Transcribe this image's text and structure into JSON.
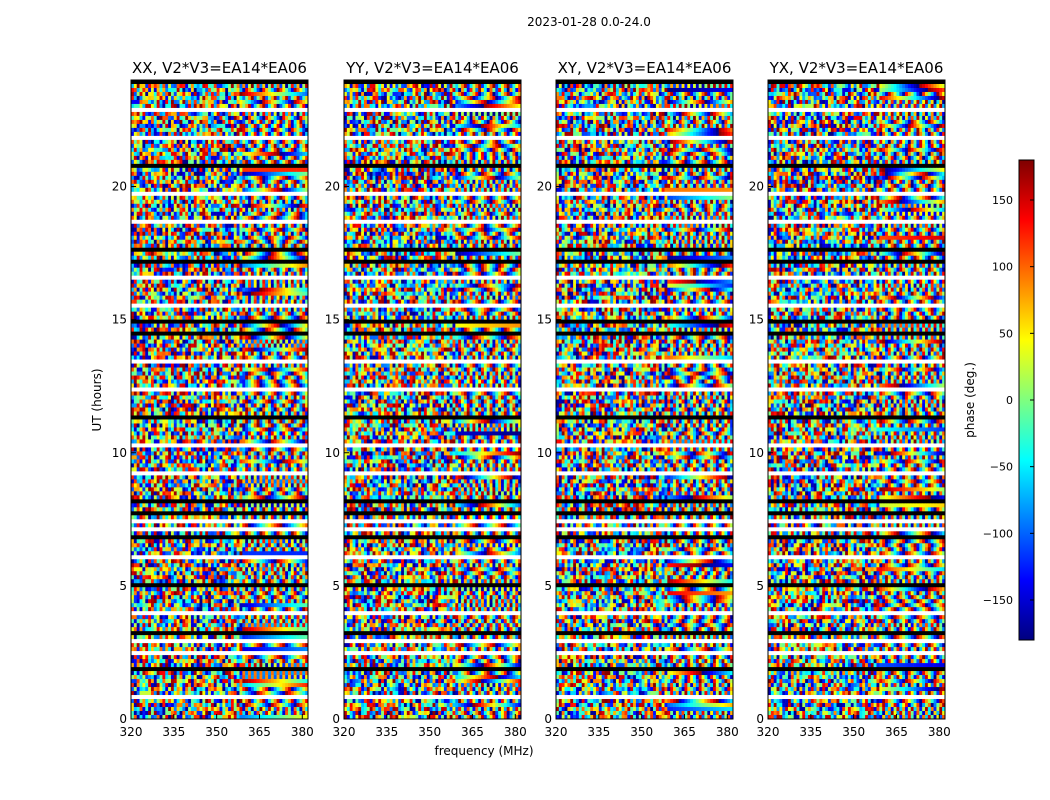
{
  "suptitle": "2023-01-28 0.0-24.0",
  "chart_data": {
    "type": "heatmap",
    "panels": [
      {
        "title": "XX, V2*V3=EA14*EA06"
      },
      {
        "title": "YY, V2*V3=EA14*EA06"
      },
      {
        "title": "XY, V2*V3=EA14*EA06"
      },
      {
        "title": "YX, V2*V3=EA14*EA06"
      }
    ],
    "xlabel": "frequency (MHz)",
    "ylabel": "UT (hours)",
    "xlim": [
      320,
      382
    ],
    "ylim": [
      0,
      24
    ],
    "xticks": [
      "320",
      "335",
      "350",
      "365",
      "380"
    ],
    "yticks": [
      "0",
      "5",
      "10",
      "15",
      "20"
    ],
    "colorbar": {
      "label": "phase (deg.)",
      "range": [
        -180,
        180
      ],
      "ticks": [
        "150",
        "100",
        "50",
        "0",
        "−50",
        "−100",
        "−150"
      ],
      "colormap": "jet"
    },
    "flagged_hours": [
      7.5,
      7.7,
      3.2,
      17.1,
      15.0,
      6.8,
      2.5
    ]
  }
}
